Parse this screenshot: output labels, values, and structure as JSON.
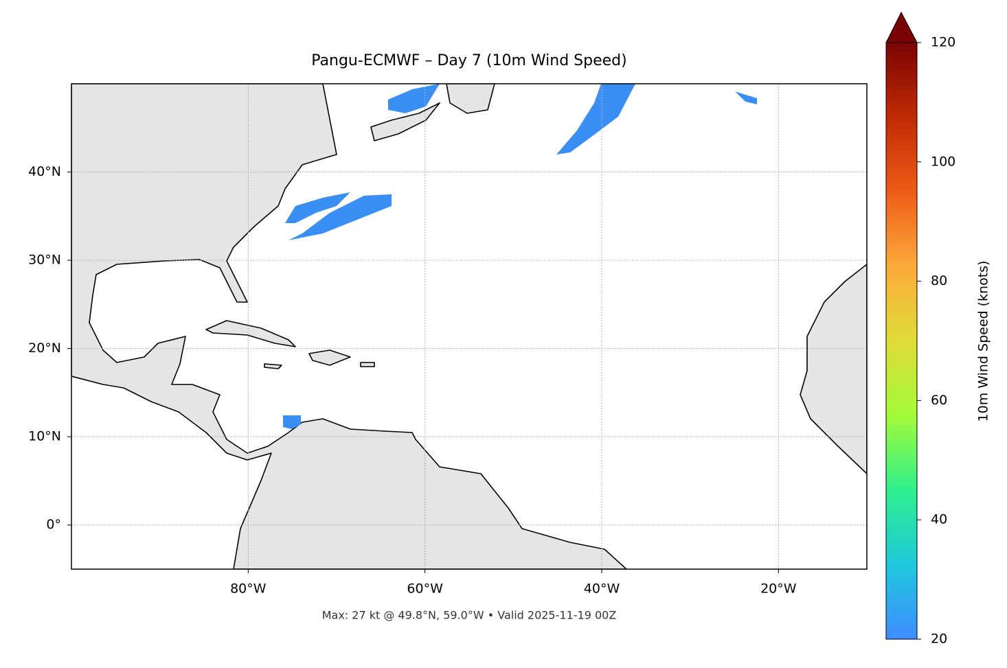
{
  "chart_data": {
    "type": "map",
    "title": "Pangu-ECMWF – Day 7 (10m Wind Speed)",
    "footer": "Max: 27 kt @ 49.8°N, 59.0°W • Valid 2025-11-19 00Z",
    "xlim": [
      -100,
      -10
    ],
    "ylim": [
      -5,
      50
    ],
    "xticks": [
      {
        "value": -80,
        "label": "80°W"
      },
      {
        "value": -60,
        "label": "60°W"
      },
      {
        "value": -40,
        "label": "40°W"
      },
      {
        "value": -20,
        "label": "20°W"
      }
    ],
    "yticks": [
      {
        "value": 0,
        "label": "0°"
      },
      {
        "value": 10,
        "label": "10°N"
      },
      {
        "value": 20,
        "label": "20°N"
      },
      {
        "value": 30,
        "label": "30°N"
      },
      {
        "value": 40,
        "label": "40°N"
      }
    ],
    "grid": true,
    "colorbar": {
      "label": "10m Wind Speed (knots)",
      "lim": [
        20,
        120
      ],
      "ticks": [
        20,
        40,
        60,
        80,
        100,
        120
      ],
      "colors": [
        "#3f8cff",
        "#1fc8dc",
        "#2ef08c",
        "#a4fb3a",
        "#e0dc38",
        "#fbaa3a",
        "#ee5c18",
        "#c02a04",
        "#7a0403"
      ]
    }
  }
}
